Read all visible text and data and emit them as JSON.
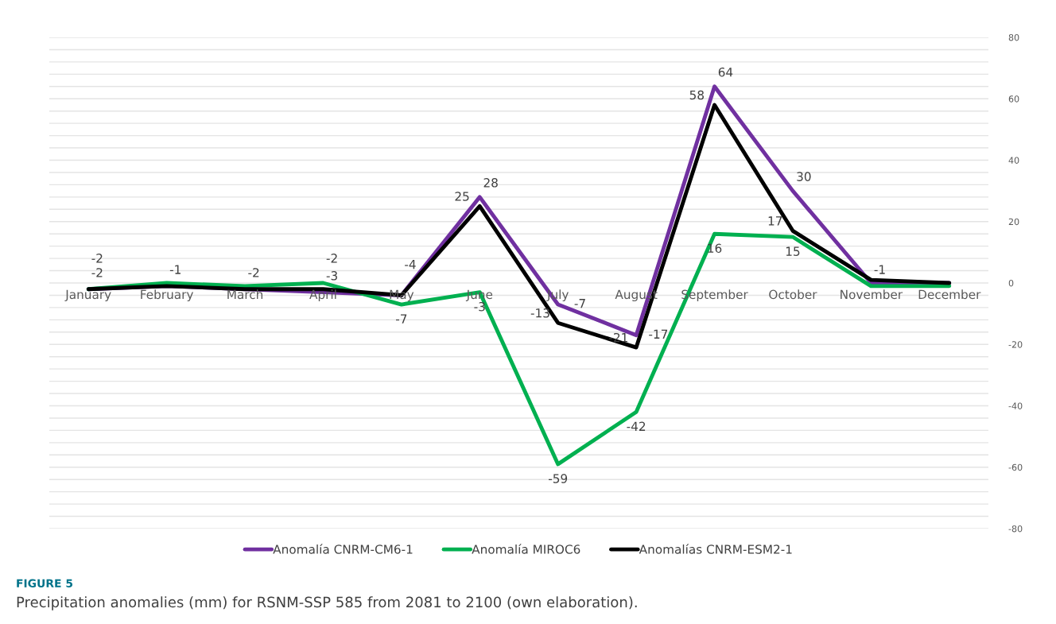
{
  "chart_data": {
    "type": "line",
    "categories": [
      "January",
      "February",
      "March",
      "April",
      "May",
      "June",
      "July",
      "August",
      "September",
      "October",
      "November",
      "December"
    ],
    "series": [
      {
        "name": "Anomalía CNRM-CM6-1",
        "color": "#7030a0",
        "values": [
          -2,
          -1,
          -2,
          -3,
          -4,
          28,
          -7,
          -17,
          64,
          30,
          0,
          0
        ],
        "value_labels": [
          "-2",
          null,
          null,
          "-3",
          null,
          "28",
          "-7",
          "-17",
          "64",
          "30",
          null,
          null
        ]
      },
      {
        "name": "Anomalía MIROC6",
        "color": "#00b050",
        "values": [
          -2,
          0,
          -1,
          0,
          -7,
          -3,
          -59,
          -42,
          16,
          15,
          -1,
          -1
        ],
        "value_labels": [
          null,
          null,
          null,
          null,
          "-7",
          "-3",
          "-59",
          "-42",
          "16",
          "15",
          "-1",
          null
        ]
      },
      {
        "name": "Anomalías CNRM-ESM2-1",
        "color": "#000000",
        "values": [
          -2,
          -1,
          -2,
          -2,
          -4,
          25,
          -13,
          -21,
          58,
          17,
          1,
          0
        ],
        "value_labels": [
          "-2",
          "-1",
          "-2",
          "-2",
          "-4",
          "25",
          "-13",
          "-21",
          "58",
          "17",
          null,
          null
        ]
      }
    ],
    "ylim": [
      -80,
      80
    ],
    "yticks": [
      -80,
      {
        "value": -76,
        "label": null
      },
      {
        "value": -72,
        "label": null
      },
      {
        "value": -68,
        "label": null
      },
      {
        "value": -64,
        "label": null
      },
      -60,
      {
        "value": -56,
        "label": null
      },
      {
        "value": -52,
        "label": null
      },
      {
        "value": -48,
        "label": null
      },
      {
        "value": -44,
        "label": null
      },
      -40,
      {
        "value": -36,
        "label": null
      },
      {
        "value": -32,
        "label": null
      },
      {
        "value": -28,
        "label": null
      },
      {
        "value": -24,
        "label": null
      },
      -20,
      {
        "value": -16,
        "label": null
      },
      {
        "value": -12,
        "label": null
      },
      {
        "value": -8,
        "label": null
      },
      {
        "value": -4,
        "label": null
      },
      0,
      {
        "value": 4,
        "label": null
      },
      {
        "value": 8,
        "label": null
      },
      {
        "value": 12,
        "label": null
      },
      {
        "value": 16,
        "label": null
      },
      20,
      {
        "value": 24,
        "label": null
      },
      {
        "value": 28,
        "label": null
      },
      {
        "value": 32,
        "label": null
      },
      {
        "value": 36,
        "label": null
      },
      40,
      {
        "value": 44,
        "label": null
      },
      {
        "value": 48,
        "label": null
      },
      {
        "value": 52,
        "label": null
      },
      {
        "value": 56,
        "label": null
      },
      60,
      {
        "value": 64,
        "label": null
      },
      {
        "value": 68,
        "label": null
      },
      {
        "value": 72,
        "label": null
      },
      {
        "value": 76,
        "label": null
      },
      80
    ],
    "grid": "y",
    "legend": "bottom",
    "marker": "none",
    "line_style": "solid",
    "annotations": [
      "FIGURE 5",
      "Precipitation anomalies (mm) for RSNM-SSP 585 from 2081 to 2100 (own elaboration)."
    ]
  }
}
